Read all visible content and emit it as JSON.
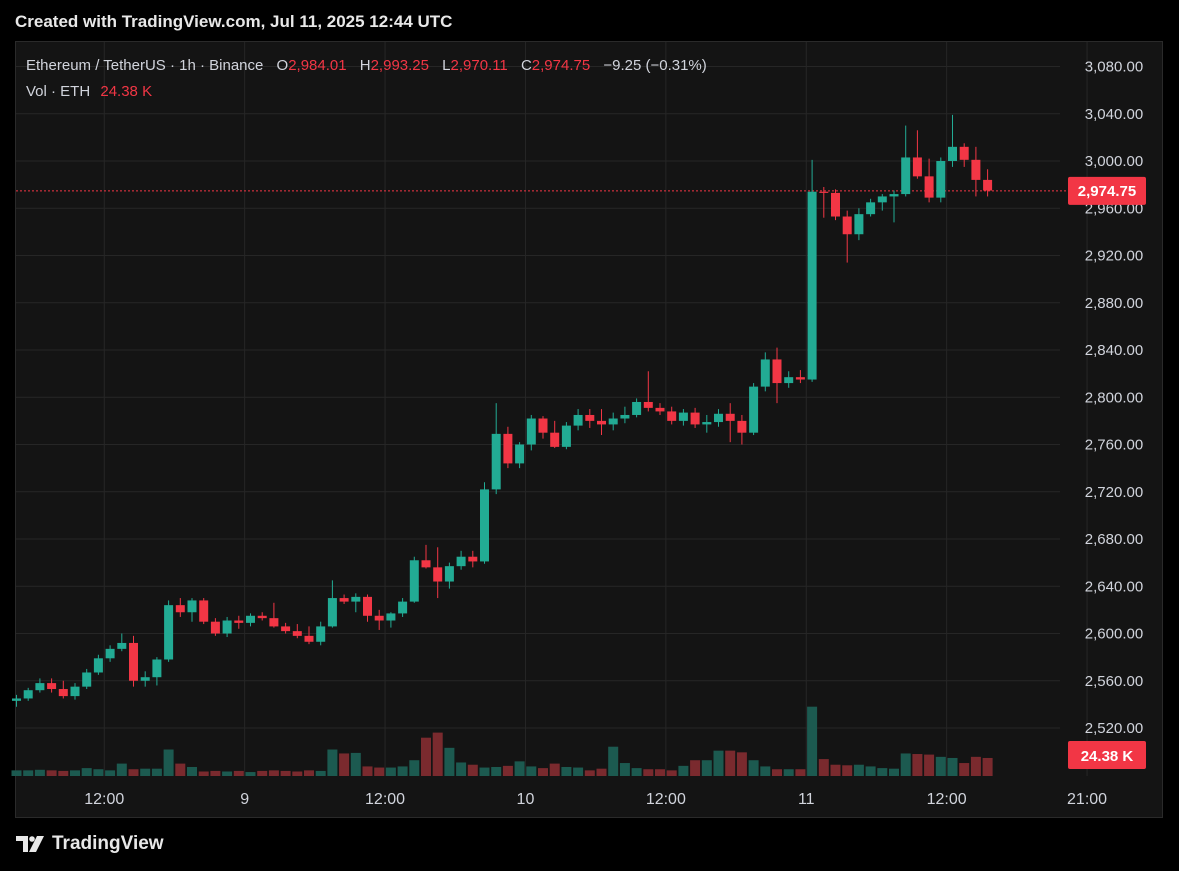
{
  "caption": "Created with TradingView.com, Jul 11, 2025 12:44 UTC",
  "legend": {
    "symbol": "Ethereum / TetherUS · 1h · Binance",
    "o_label": "O",
    "o_value": "2,984.01",
    "h_label": "H",
    "h_value": "2,993.25",
    "l_label": "L",
    "l_value": "2,970.11",
    "c_label": "C",
    "c_value": "2,974.75",
    "change": "−9.25 (−0.31%)",
    "vol_label": "Vol · ETH",
    "vol_value": "24.38 K"
  },
  "price_tag": "2,974.75",
  "volume_tag": "24.38 K",
  "footer_brand": "TradingView",
  "colors": {
    "up": "#22ab94",
    "down": "#f23645",
    "up_volume": "#1c5a50",
    "down_volume": "#7a2a2e",
    "grid": "#262626",
    "axis_text": "#d1d4dc",
    "price_line": "#f23645"
  },
  "chart_data": {
    "type": "candlestick",
    "title": "Ethereum / TetherUS · 1h · Binance",
    "y_ticks": [
      "3,080.00",
      "3,040.00",
      "3,000.00",
      "2,960.00",
      "2,920.00",
      "2,880.00",
      "2,840.00",
      "2,800.00",
      "2,760.00",
      "2,720.00",
      "2,680.00",
      "2,640.00",
      "2,600.00",
      "2,560.00",
      "2,520.00"
    ],
    "y_tick_values": [
      3080,
      3040,
      3000,
      2960,
      2920,
      2880,
      2840,
      2800,
      2760,
      2720,
      2680,
      2640,
      2600,
      2560,
      2520
    ],
    "ylim": [
      2505,
      3092
    ],
    "x_ticks": [
      "12:00",
      "9",
      "12:00",
      "10",
      "12:00",
      "11",
      "12:00",
      "21:00"
    ],
    "x_tick_index": [
      7.5,
      19.5,
      31.5,
      43.5,
      55.5,
      67.5,
      79.5,
      91.5
    ],
    "last_price": 2974.75,
    "grid": true,
    "candles": [
      {
        "o": 2543,
        "h": 2548,
        "l": 2538,
        "c": 2545
      },
      {
        "o": 2545,
        "h": 2554,
        "l": 2543,
        "c": 2552
      },
      {
        "o": 2552,
        "h": 2562,
        "l": 2550,
        "c": 2558
      },
      {
        "o": 2558,
        "h": 2562,
        "l": 2550,
        "c": 2553
      },
      {
        "o": 2553,
        "h": 2560,
        "l": 2545,
        "c": 2547
      },
      {
        "o": 2547,
        "h": 2558,
        "l": 2544,
        "c": 2555
      },
      {
        "o": 2555,
        "h": 2570,
        "l": 2553,
        "c": 2567
      },
      {
        "o": 2567,
        "h": 2582,
        "l": 2565,
        "c": 2579
      },
      {
        "o": 2579,
        "h": 2590,
        "l": 2576,
        "c": 2587
      },
      {
        "o": 2587,
        "h": 2600,
        "l": 2585,
        "c": 2592
      },
      {
        "o": 2592,
        "h": 2598,
        "l": 2555,
        "c": 2560
      },
      {
        "o": 2560,
        "h": 2568,
        "l": 2555,
        "c": 2563
      },
      {
        "o": 2563,
        "h": 2580,
        "l": 2556,
        "c": 2578
      },
      {
        "o": 2578,
        "h": 2628,
        "l": 2576,
        "c": 2624
      },
      {
        "o": 2624,
        "h": 2630,
        "l": 2614,
        "c": 2618
      },
      {
        "o": 2618,
        "h": 2630,
        "l": 2610,
        "c": 2628
      },
      {
        "o": 2628,
        "h": 2630,
        "l": 2608,
        "c": 2610
      },
      {
        "o": 2610,
        "h": 2613,
        "l": 2598,
        "c": 2600
      },
      {
        "o": 2600,
        "h": 2614,
        "l": 2597,
        "c": 2611
      },
      {
        "o": 2611,
        "h": 2615,
        "l": 2604,
        "c": 2609
      },
      {
        "o": 2609,
        "h": 2617,
        "l": 2606,
        "c": 2615
      },
      {
        "o": 2615,
        "h": 2618,
        "l": 2611,
        "c": 2613
      },
      {
        "o": 2613,
        "h": 2626,
        "l": 2605,
        "c": 2606
      },
      {
        "o": 2606,
        "h": 2609,
        "l": 2600,
        "c": 2602
      },
      {
        "o": 2602,
        "h": 2608,
        "l": 2596,
        "c": 2598
      },
      {
        "o": 2598,
        "h": 2606,
        "l": 2591,
        "c": 2593
      },
      {
        "o": 2593,
        "h": 2610,
        "l": 2590,
        "c": 2606
      },
      {
        "o": 2606,
        "h": 2645,
        "l": 2605,
        "c": 2630
      },
      {
        "o": 2630,
        "h": 2633,
        "l": 2625,
        "c": 2627
      },
      {
        "o": 2627,
        "h": 2634,
        "l": 2618,
        "c": 2631
      },
      {
        "o": 2631,
        "h": 2633,
        "l": 2610,
        "c": 2615
      },
      {
        "o": 2615,
        "h": 2620,
        "l": 2603,
        "c": 2611
      },
      {
        "o": 2611,
        "h": 2618,
        "l": 2605,
        "c": 2617
      },
      {
        "o": 2617,
        "h": 2630,
        "l": 2614,
        "c": 2627
      },
      {
        "o": 2627,
        "h": 2665,
        "l": 2626,
        "c": 2662
      },
      {
        "o": 2662,
        "h": 2675,
        "l": 2655,
        "c": 2656
      },
      {
        "o": 2656,
        "h": 2673,
        "l": 2630,
        "c": 2644
      },
      {
        "o": 2644,
        "h": 2660,
        "l": 2638,
        "c": 2657
      },
      {
        "o": 2657,
        "h": 2670,
        "l": 2654,
        "c": 2665
      },
      {
        "o": 2665,
        "h": 2670,
        "l": 2656,
        "c": 2661
      },
      {
        "o": 2661,
        "h": 2728,
        "l": 2659,
        "c": 2722
      },
      {
        "o": 2722,
        "h": 2795,
        "l": 2718,
        "c": 2769
      },
      {
        "o": 2769,
        "h": 2775,
        "l": 2740,
        "c": 2744
      },
      {
        "o": 2744,
        "h": 2762,
        "l": 2740,
        "c": 2760
      },
      {
        "o": 2760,
        "h": 2785,
        "l": 2755,
        "c": 2782
      },
      {
        "o": 2782,
        "h": 2784,
        "l": 2765,
        "c": 2770
      },
      {
        "o": 2770,
        "h": 2780,
        "l": 2757,
        "c": 2758
      },
      {
        "o": 2758,
        "h": 2779,
        "l": 2756,
        "c": 2776
      },
      {
        "o": 2776,
        "h": 2790,
        "l": 2772,
        "c": 2785
      },
      {
        "o": 2785,
        "h": 2790,
        "l": 2774,
        "c": 2780
      },
      {
        "o": 2780,
        "h": 2790,
        "l": 2768,
        "c": 2777
      },
      {
        "o": 2777,
        "h": 2787,
        "l": 2772,
        "c": 2782
      },
      {
        "o": 2782,
        "h": 2792,
        "l": 2778,
        "c": 2785
      },
      {
        "o": 2785,
        "h": 2799,
        "l": 2783,
        "c": 2796
      },
      {
        "o": 2796,
        "h": 2822,
        "l": 2788,
        "c": 2791
      },
      {
        "o": 2791,
        "h": 2795,
        "l": 2785,
        "c": 2788
      },
      {
        "o": 2788,
        "h": 2792,
        "l": 2777,
        "c": 2780
      },
      {
        "o": 2780,
        "h": 2790,
        "l": 2776,
        "c": 2787
      },
      {
        "o": 2787,
        "h": 2791,
        "l": 2774,
        "c": 2777
      },
      {
        "o": 2777,
        "h": 2785,
        "l": 2770,
        "c": 2779
      },
      {
        "o": 2779,
        "h": 2790,
        "l": 2775,
        "c": 2786
      },
      {
        "o": 2786,
        "h": 2795,
        "l": 2762,
        "c": 2780
      },
      {
        "o": 2780,
        "h": 2785,
        "l": 2760,
        "c": 2770
      },
      {
        "o": 2770,
        "h": 2812,
        "l": 2768,
        "c": 2809
      },
      {
        "o": 2809,
        "h": 2838,
        "l": 2805,
        "c": 2832
      },
      {
        "o": 2832,
        "h": 2842,
        "l": 2795,
        "c": 2812
      },
      {
        "o": 2812,
        "h": 2822,
        "l": 2808,
        "c": 2817
      },
      {
        "o": 2817,
        "h": 2823,
        "l": 2812,
        "c": 2815
      },
      {
        "o": 2815,
        "h": 3001,
        "l": 2813,
        "c": 2974
      },
      {
        "o": 2974,
        "h": 2978,
        "l": 2952,
        "c": 2973
      },
      {
        "o": 2973,
        "h": 2976,
        "l": 2950,
        "c": 2953
      },
      {
        "o": 2953,
        "h": 2958,
        "l": 2914,
        "c": 2938
      },
      {
        "o": 2938,
        "h": 2960,
        "l": 2933,
        "c": 2955
      },
      {
        "o": 2955,
        "h": 2968,
        "l": 2953,
        "c": 2965
      },
      {
        "o": 2965,
        "h": 2972,
        "l": 2958,
        "c": 2970
      },
      {
        "o": 2970,
        "h": 2975,
        "l": 2948,
        "c": 2972
      },
      {
        "o": 2972,
        "h": 3030,
        "l": 2970,
        "c": 3003
      },
      {
        "o": 3003,
        "h": 3026,
        "l": 2985,
        "c": 2987
      },
      {
        "o": 2987,
        "h": 3002,
        "l": 2965,
        "c": 2969
      },
      {
        "o": 2969,
        "h": 3003,
        "l": 2965,
        "c": 3000
      },
      {
        "o": 3000,
        "h": 3039,
        "l": 2995,
        "c": 3012
      },
      {
        "o": 3012,
        "h": 3015,
        "l": 2995,
        "c": 3001
      },
      {
        "o": 3001,
        "h": 3012,
        "l": 2970,
        "c": 2984
      },
      {
        "o": 2984,
        "h": 2993,
        "l": 2970,
        "c": 2975
      }
    ],
    "volume_scale_max": 100,
    "volumes": [
      10,
      10,
      11,
      10,
      9,
      10,
      14,
      12,
      10,
      22,
      12,
      13,
      13,
      47,
      22,
      16,
      8,
      9,
      8,
      9,
      7,
      9,
      10,
      9,
      8,
      10,
      9,
      47,
      40,
      41,
      17,
      15,
      15,
      17,
      28,
      68,
      77,
      50,
      24,
      20,
      15,
      16,
      18,
      26,
      17,
      14,
      22,
      16,
      15,
      10,
      13,
      52,
      23,
      14,
      12,
      12,
      10,
      18,
      28,
      28,
      45,
      45,
      42,
      28,
      17,
      12,
      12,
      12,
      123,
      30,
      20,
      19,
      20,
      17,
      14,
      13,
      40,
      39,
      38,
      34,
      32,
      23,
      34,
      32
    ]
  }
}
